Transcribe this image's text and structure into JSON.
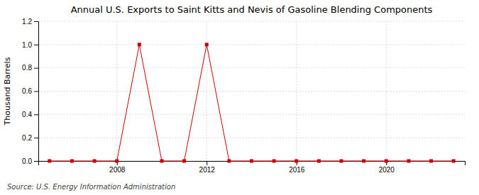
{
  "chart_data": {
    "type": "line",
    "title": "Annual U.S. Exports to Saint Kitts and Nevis of Gasoline Blending Components",
    "ylabel": "Thousand Barrels",
    "annotations": [
      "Source: U.S. Energy Information Administration"
    ],
    "x": [
      2005,
      2006,
      2007,
      2008,
      2009,
      2010,
      2011,
      2012,
      2013,
      2014,
      2015,
      2016,
      2017,
      2018,
      2019,
      2020,
      2021,
      2022,
      2023
    ],
    "values": [
      0,
      0,
      0,
      0,
      1,
      0,
      0,
      1,
      0,
      0,
      0,
      0,
      0,
      0,
      0,
      0,
      0,
      0,
      0
    ],
    "color": "#cc0000",
    "marker": "square",
    "line_style": "solid",
    "xlim": [
      2004.5,
      2023.5
    ],
    "xticks": [
      2008,
      2012,
      2016,
      2020
    ],
    "ylim": [
      0,
      1.2
    ],
    "yticks": [
      {
        "value": 0,
        "label": "0.0"
      },
      0.2,
      0.4,
      0.6,
      0.8,
      {
        "value": 1,
        "label": "1.0"
      },
      1.2
    ],
    "grid": true
  }
}
